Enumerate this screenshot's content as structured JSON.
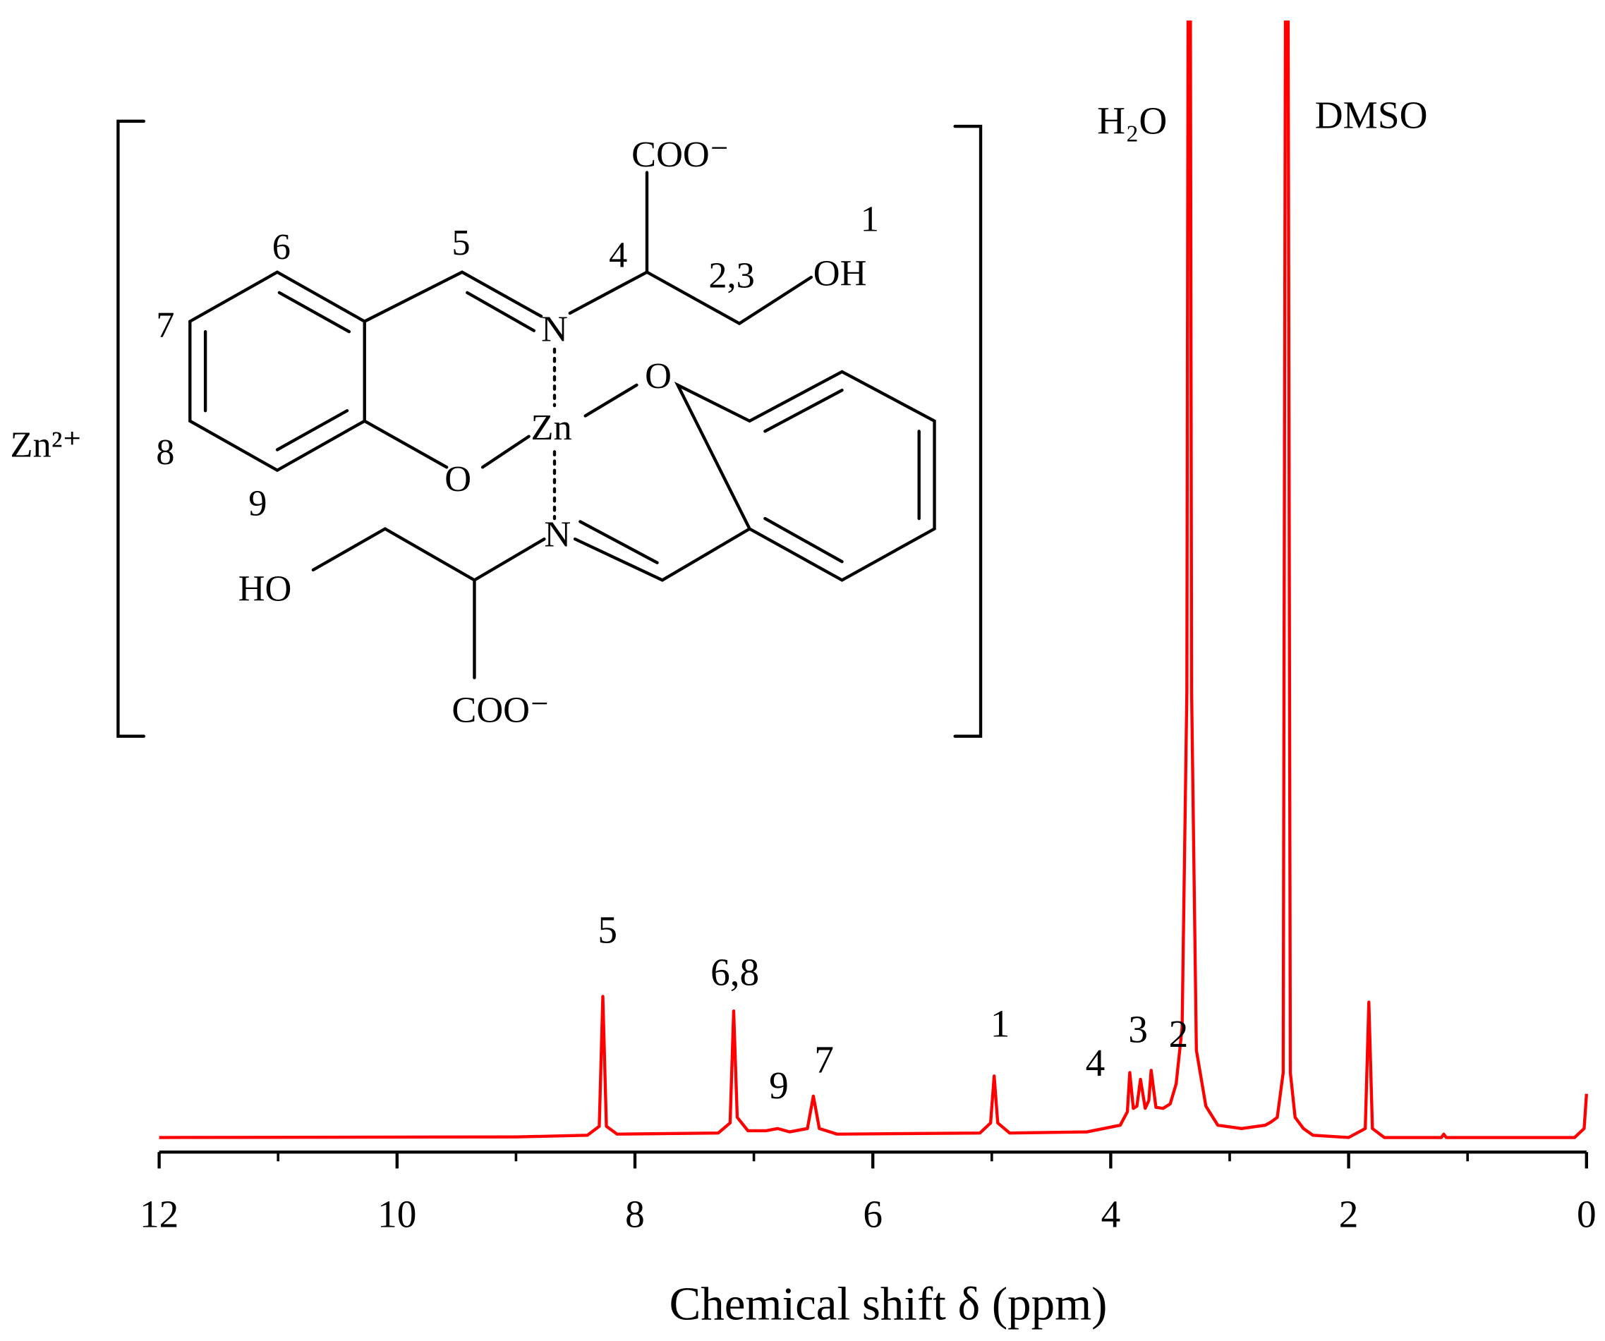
{
  "chart_data": {
    "type": "line",
    "xlabel": "Chemical shift δ (ppm)",
    "xlim": [
      12,
      0
    ],
    "xticks": [
      12,
      10,
      8,
      6,
      4,
      2,
      0
    ],
    "xminor_ticks": [
      11,
      9,
      7,
      5,
      3,
      1
    ],
    "ylim": [
      0,
      100
    ],
    "color": "#ff0000",
    "x": [
      12.0,
      9.0,
      8.4,
      8.3,
      8.27,
      8.24,
      8.15,
      7.3,
      7.2,
      7.17,
      7.14,
      7.05,
      6.9,
      6.8,
      6.7,
      6.55,
      6.5,
      6.45,
      6.3,
      5.1,
      5.01,
      4.98,
      4.95,
      4.85,
      4.2,
      3.92,
      3.86,
      3.84,
      3.81,
      3.78,
      3.75,
      3.71,
      3.68,
      3.66,
      3.62,
      3.56,
      3.5,
      3.45,
      3.4,
      3.36,
      3.34,
      3.32,
      3.28,
      3.2,
      3.1,
      2.9,
      2.7,
      2.65,
      2.6,
      2.55,
      2.52,
      2.49,
      2.45,
      2.38,
      2.3,
      2.0,
      1.86,
      1.83,
      1.8,
      1.7,
      1.22,
      1.2,
      1.18,
      0.1,
      0.02,
      0.0
    ],
    "values": [
      0.2,
      0.25,
      0.4,
      1.2,
      12.8,
      1.2,
      0.5,
      0.6,
      1.5,
      11.5,
      2.0,
      0.8,
      0.8,
      1.0,
      0.7,
      1.0,
      3.9,
      1.0,
      0.5,
      0.6,
      1.5,
      5.7,
      1.5,
      0.6,
      0.7,
      1.3,
      2.5,
      6.0,
      2.8,
      3.0,
      5.4,
      2.8,
      3.5,
      6.2,
      2.9,
      2.8,
      3.2,
      5.0,
      10.0,
      40.0,
      160.0,
      40.0,
      8.0,
      3.0,
      1.3,
      1.0,
      1.3,
      1.6,
      2.0,
      6.0,
      160.0,
      6.0,
      2.0,
      1.0,
      0.4,
      0.2,
      1.0,
      12.3,
      1.0,
      0.2,
      0.2,
      0.5,
      0.2,
      0.2,
      1.0,
      4.1
    ],
    "annotations": [
      {
        "text": "5",
        "x": 8.23,
        "y": 17.6
      },
      {
        "text": "6,8",
        "x": 7.16,
        "y": 13.8
      },
      {
        "text": "9",
        "x": 6.79,
        "y": 3.7
      },
      {
        "text": "7",
        "x": 6.41,
        "y": 6.0
      },
      {
        "text": "1",
        "x": 4.93,
        "y": 9.2
      },
      {
        "text": "4",
        "x": 4.13,
        "y": 5.7
      },
      {
        "text": "3",
        "x": 3.77,
        "y": 8.7
      },
      {
        "text": "2",
        "x": 3.43,
        "y": 8.3
      },
      {
        "text": "H₂O",
        "x": 3.82,
        "y": 89.9
      },
      {
        "text": "DMSO",
        "x": 1.81,
        "y": 90.4
      }
    ]
  },
  "structure": {
    "counter_ion": "Zn²⁺",
    "labels": [
      "COO⁻",
      "1",
      "5",
      "4",
      "2,3",
      "OH",
      "6",
      "7",
      "8",
      "9",
      "N",
      "Zn",
      "O",
      "O",
      "N",
      "HO",
      "COO⁻"
    ]
  }
}
